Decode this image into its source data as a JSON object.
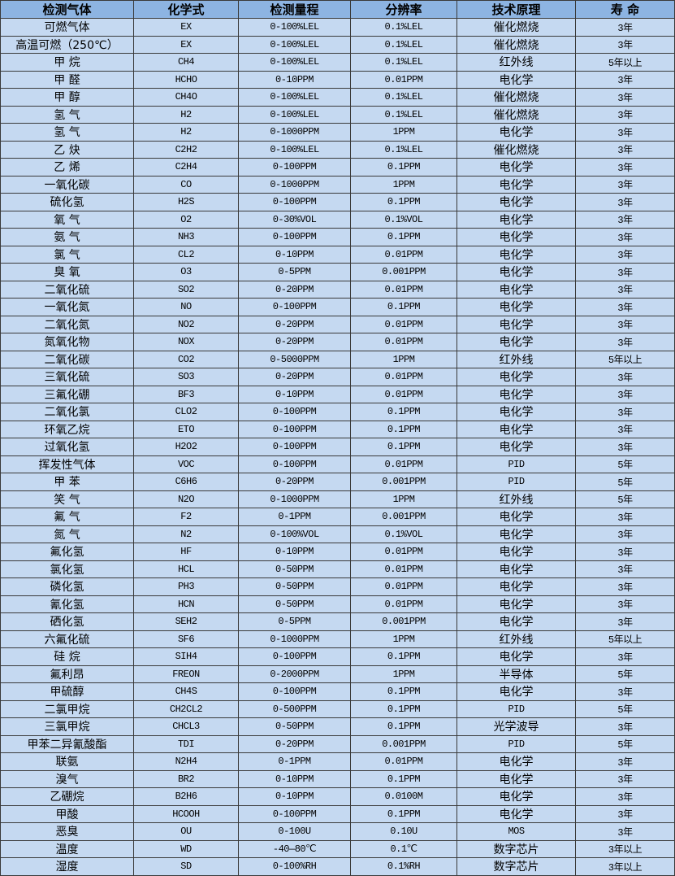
{
  "colors": {
    "header_bg": "#8db4e2",
    "row_bg": "#c5d9f1",
    "border": "#3a3a3a"
  },
  "headers": [
    "检测气体",
    "化学式",
    "检测量程",
    "分辨率",
    "技术原理",
    "寿 命"
  ],
  "rows": [
    [
      "可燃气体",
      "EX",
      "0-100%LEL",
      "0.1%LEL",
      "催化燃烧",
      "3年"
    ],
    [
      "高温可燃（250℃）",
      "EX",
      "0-100%LEL",
      "0.1%LEL",
      "催化燃烧",
      "3年"
    ],
    [
      "甲 烷",
      "CH4",
      "0-100%LEL",
      "0.1%LEL",
      "红外线",
      "5年以上"
    ],
    [
      "甲 醛",
      "HCHO",
      "0-10PPM",
      "0.01PPM",
      "电化学",
      "3年"
    ],
    [
      "甲 醇",
      "CH4O",
      "0-100%LEL",
      "0.1%LEL",
      "催化燃烧",
      "3年"
    ],
    [
      "氢 气",
      "H2",
      "0-100%LEL",
      "0.1%LEL",
      "催化燃烧",
      "3年"
    ],
    [
      "氢 气",
      "H2",
      "0-1000PPM",
      "1PPM",
      "电化学",
      "3年"
    ],
    [
      "乙 炔",
      "C2H2",
      "0-100%LEL",
      "0.1%LEL",
      "催化燃烧",
      "3年"
    ],
    [
      "乙 烯",
      "C2H4",
      "0-100PPM",
      "0.1PPM",
      "电化学",
      "3年"
    ],
    [
      "一氧化碳",
      "CO",
      "0-1000PPM",
      "1PPM",
      "电化学",
      "3年"
    ],
    [
      "硫化氢",
      "H2S",
      "0-100PPM",
      "0.1PPM",
      "电化学",
      "3年"
    ],
    [
      "氧 气",
      "O2",
      "0-30%VOL",
      "0.1%VOL",
      "电化学",
      "3年"
    ],
    [
      "氨 气",
      "NH3",
      "0-100PPM",
      "0.1PPM",
      "电化学",
      "3年"
    ],
    [
      "氯 气",
      "CL2",
      "0-10PPM",
      "0.01PPM",
      "电化学",
      "3年"
    ],
    [
      "臭 氧",
      "O3",
      "0-5PPM",
      "0.001PPM",
      "电化学",
      "3年"
    ],
    [
      "二氧化硫",
      "SO2",
      "0-20PPM",
      "0.01PPM",
      "电化学",
      "3年"
    ],
    [
      "一氧化氮",
      "NO",
      "0-100PPM",
      "0.1PPM",
      "电化学",
      "3年"
    ],
    [
      "二氧化氮",
      "NO2",
      "0-20PPM",
      "0.01PPM",
      "电化学",
      "3年"
    ],
    [
      "氮氧化物",
      "NOX",
      "0-20PPM",
      "0.01PPM",
      "电化学",
      "3年"
    ],
    [
      "二氧化碳",
      "CO2",
      "0-5000PPM",
      "1PPM",
      "红外线",
      "5年以上"
    ],
    [
      "三氧化硫",
      "SO3",
      "0-20PPM",
      "0.01PPM",
      "电化学",
      "3年"
    ],
    [
      "三氟化硼",
      "BF3",
      "0-10PPM",
      "0.01PPM",
      "电化学",
      "3年"
    ],
    [
      "二氧化氯",
      "CLO2",
      "0-100PPM",
      "0.1PPM",
      "电化学",
      "3年"
    ],
    [
      "环氧乙烷",
      "ETO",
      "0-100PPM",
      "0.1PPM",
      "电化学",
      "3年"
    ],
    [
      "过氧化氢",
      "H2O2",
      "0-100PPM",
      "0.1PPM",
      "电化学",
      "3年"
    ],
    [
      "挥发性气体",
      "VOC",
      "0-100PPM",
      "0.01PPM",
      "PID",
      "5年"
    ],
    [
      "甲 苯",
      "C6H6",
      "0-20PPM",
      "0.001PPM",
      "PID",
      "5年"
    ],
    [
      "笑 气",
      "N2O",
      "0-1000PPM",
      "1PPM",
      "红外线",
      "5年"
    ],
    [
      "氟 气",
      "F2",
      "0-1PPM",
      "0.001PPM",
      "电化学",
      "3年"
    ],
    [
      "氮 气",
      "N2",
      "0-100%VOL",
      "0.1%VOL",
      "电化学",
      "3年"
    ],
    [
      "氟化氢",
      "HF",
      "0-10PPM",
      "0.01PPM",
      "电化学",
      "3年"
    ],
    [
      "氯化氢",
      "HCL",
      "0-50PPM",
      "0.01PPM",
      "电化学",
      "3年"
    ],
    [
      "磷化氢",
      "PH3",
      "0-50PPM",
      "0.01PPM",
      "电化学",
      "3年"
    ],
    [
      "氰化氢",
      "HCN",
      "0-50PPM",
      "0.01PPM",
      "电化学",
      "3年"
    ],
    [
      "硒化氢",
      "SEH2",
      "0-5PPM",
      "0.001PPM",
      "电化学",
      "3年"
    ],
    [
      "六氟化硫",
      "SF6",
      "0-1000PPM",
      "1PPM",
      "红外线",
      "5年以上"
    ],
    [
      "硅 烷",
      "SIH4",
      "0-100PPM",
      "0.1PPM",
      "电化学",
      "3年"
    ],
    [
      "氟利昂",
      "FREON",
      "0-2000PPM",
      "1PPM",
      "半导体",
      "5年"
    ],
    [
      "甲硫醇",
      "CH4S",
      "0-100PPM",
      "0.1PPM",
      "电化学",
      "3年"
    ],
    [
      "二氯甲烷",
      "CH2CL2",
      "0-500PPM",
      "0.1PPM",
      "PID",
      "5年"
    ],
    [
      "三氯甲烷",
      "CHCL3",
      "0-50PPM",
      "0.1PPM",
      "光学波导",
      "3年"
    ],
    [
      "甲苯二异氰酸酯",
      "TDI",
      "0-20PPM",
      "0.001PPM",
      "PID",
      "5年"
    ],
    [
      "联氨",
      "N2H4",
      "0-1PPM",
      "0.01PPM",
      "电化学",
      "3年"
    ],
    [
      "溴气",
      "BR2",
      "0-10PPM",
      "0.1PPM",
      "电化学",
      "3年"
    ],
    [
      "乙硼烷",
      "B2H6",
      "0-10PPM",
      "0.0100M",
      "电化学",
      "3年"
    ],
    [
      "甲酸",
      "HCOOH",
      "0-100PPM",
      "0.1PPM",
      "电化学",
      "3年"
    ],
    [
      "恶臭",
      "OU",
      "0-100U",
      "0.10U",
      "MOS",
      "3年"
    ],
    [
      "温度",
      "WD",
      "-40—80℃",
      "0.1℃",
      "数字芯片",
      "3年以上"
    ],
    [
      "湿度",
      "SD",
      "0-100%RH",
      "0.1%RH",
      "数字芯片",
      "3年以上"
    ]
  ]
}
